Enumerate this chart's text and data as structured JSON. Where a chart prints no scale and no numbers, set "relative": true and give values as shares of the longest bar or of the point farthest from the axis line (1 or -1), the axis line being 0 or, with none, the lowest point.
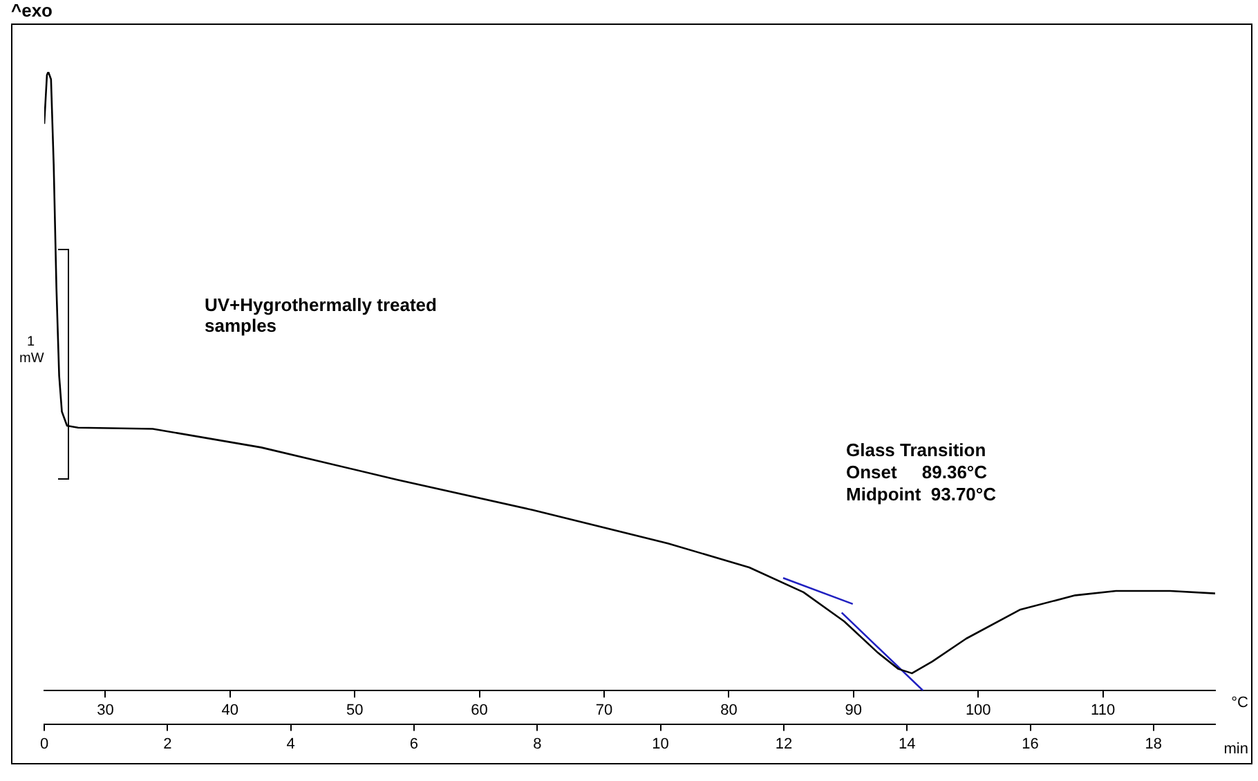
{
  "chart_data": {
    "type": "line",
    "relative": true,
    "ylabel": "^exo",
    "xlabel": "min",
    "x2label": "°C",
    "xlim": [
      0,
      19
    ],
    "xticks": [
      0,
      2,
      4,
      6,
      8,
      10,
      12,
      14,
      16,
      18
    ],
    "x2lim": [
      25.1,
      119
    ],
    "x2ticks": [
      30,
      40,
      50,
      60,
      70,
      80,
      90,
      100,
      110
    ],
    "annotations": [
      "UV+Hygrothermally treated samples",
      "Glass Transition",
      "Onset     89.36°C",
      "Midpoint  93.70°C",
      "1 mW"
    ],
    "grid": false,
    "legend": false,
    "marker": "none",
    "line_style": "solid",
    "series": [
      {
        "color": "#000000",
        "x": [
          0,
          0.044,
          0.066,
          0.11,
          0.154,
          0.198,
          0.242,
          0.286,
          0.37,
          0.55,
          1.76,
          3.52,
          5.72,
          7.92,
          10.12,
          11.44,
          12.32,
          12.98,
          13.53,
          13.86,
          14.08,
          14.41,
          14.96,
          15.84,
          16.73,
          17.39,
          18.27,
          19.0
        ],
        "values": [
          0.916,
          0.995,
          1,
          0.988,
          0.848,
          0.65,
          0.509,
          0.451,
          0.428,
          0.425,
          0.423,
          0.393,
          0.341,
          0.292,
          0.238,
          0.199,
          0.159,
          0.112,
          0.061,
          0.035,
          0.028,
          0.047,
          0.084,
          0.131,
          0.154,
          0.161,
          0.161,
          0.157
        ]
      },
      {
        "color": "#2020c0",
        "x": [
          11.99,
          13.12
        ],
        "values": [
          0.182,
          0.14
        ]
      },
      {
        "color": "#2020c0",
        "x": [
          12.94,
          14.26
        ],
        "values": [
          0.126,
          0
        ]
      }
    ]
  }
}
